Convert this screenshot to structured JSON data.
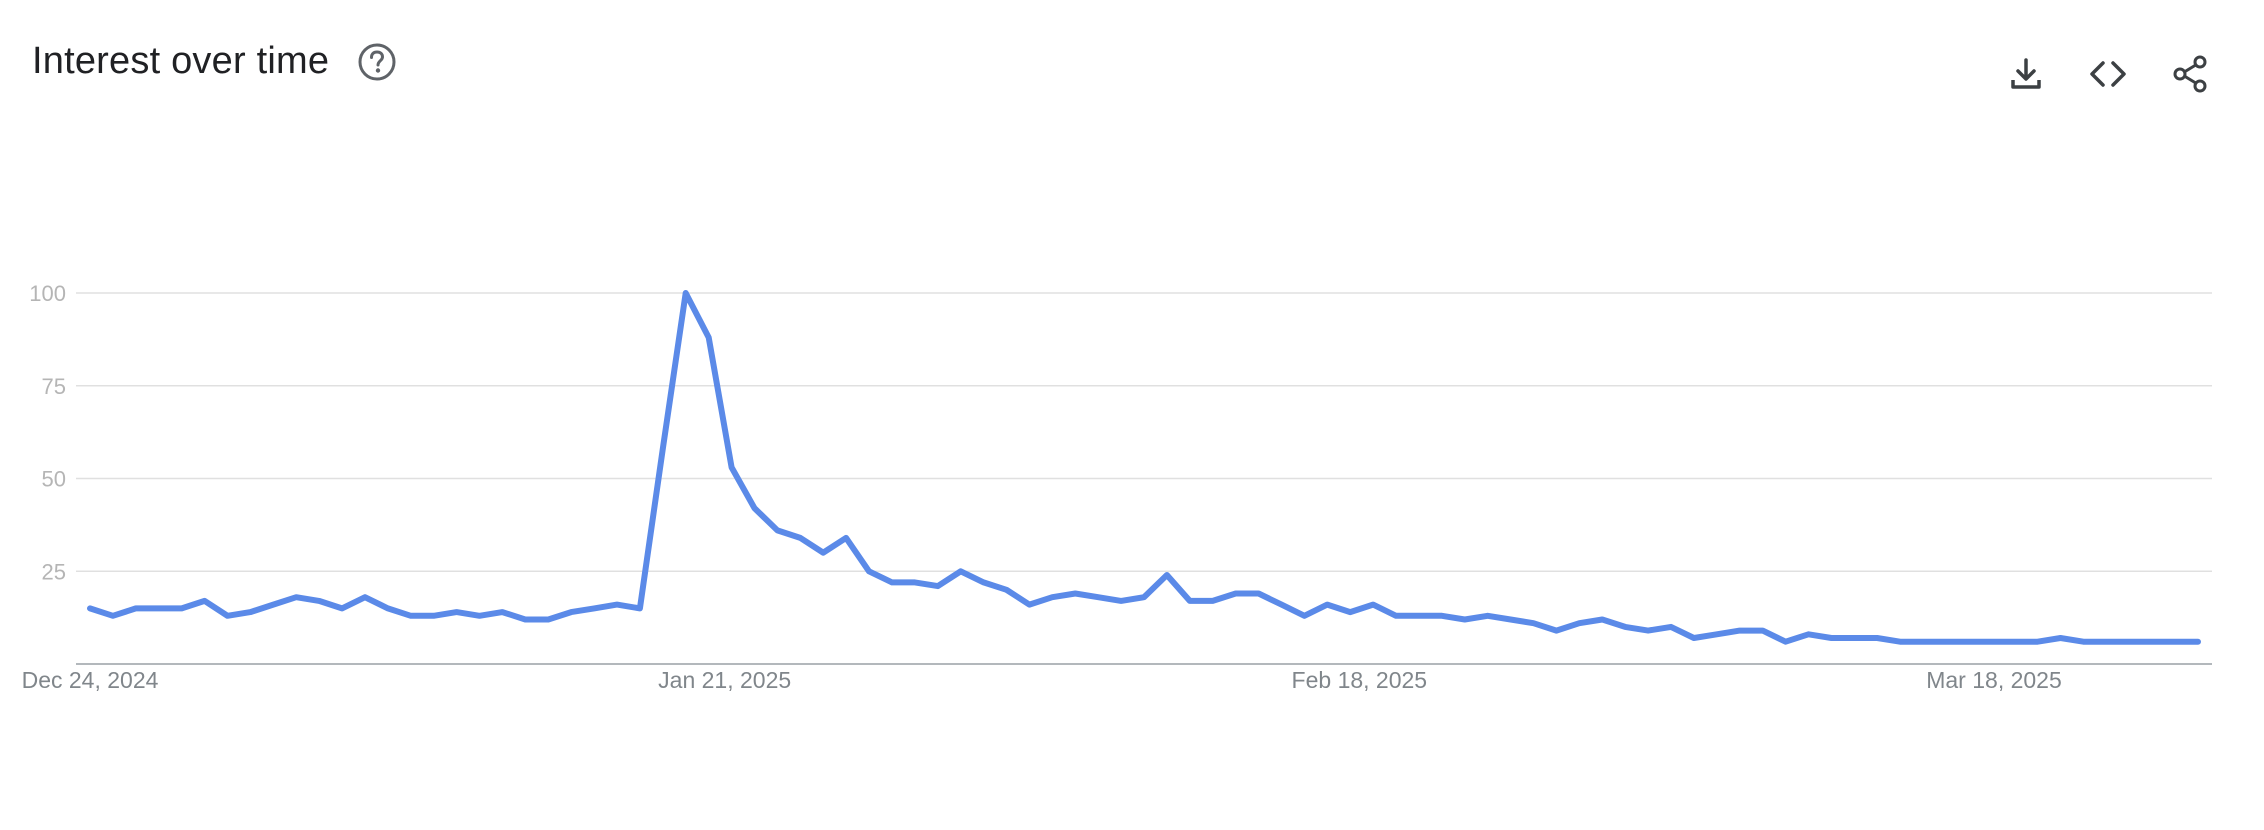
{
  "header": {
    "title": "Interest over time"
  },
  "icons": {
    "help": "help-circle-icon",
    "download": "download-icon",
    "embed": "code-embed-icon",
    "share": "share-icon"
  },
  "chart_data": {
    "type": "line",
    "title": "Interest over time",
    "xlabel": "",
    "ylabel": "",
    "ylim": [
      0,
      100
    ],
    "yticks": [
      "25",
      "50",
      "75",
      "100"
    ],
    "xticks": [
      "Dec 24, 2024",
      "Jan 21, 2025",
      "Feb 18, 2025",
      "Mar 18, 2025"
    ],
    "x_start": "2024-12-24",
    "x_end": "2025-03-27",
    "grid": true,
    "color": "#5b8ae8",
    "series": [
      {
        "values": [
          15,
          13,
          15,
          15,
          15,
          17,
          13,
          14,
          16,
          18,
          17,
          15,
          18,
          15,
          13,
          13,
          14,
          13,
          14,
          12,
          12,
          14,
          15,
          16,
          15,
          58,
          100,
          88,
          53,
          42,
          36,
          34,
          30,
          34,
          25,
          22,
          22,
          21,
          25,
          22,
          20,
          16,
          18,
          19,
          18,
          17,
          18,
          24,
          17,
          17,
          19,
          19,
          16,
          13,
          16,
          14,
          16,
          13,
          13,
          13,
          12,
          13,
          12,
          11,
          9,
          11,
          12,
          10,
          9,
          10,
          7,
          8,
          9,
          9,
          6,
          8,
          7,
          7,
          7,
          6,
          6,
          6,
          6,
          6,
          6,
          6,
          7,
          6,
          6,
          6,
          6,
          6,
          6
        ]
      }
    ]
  }
}
